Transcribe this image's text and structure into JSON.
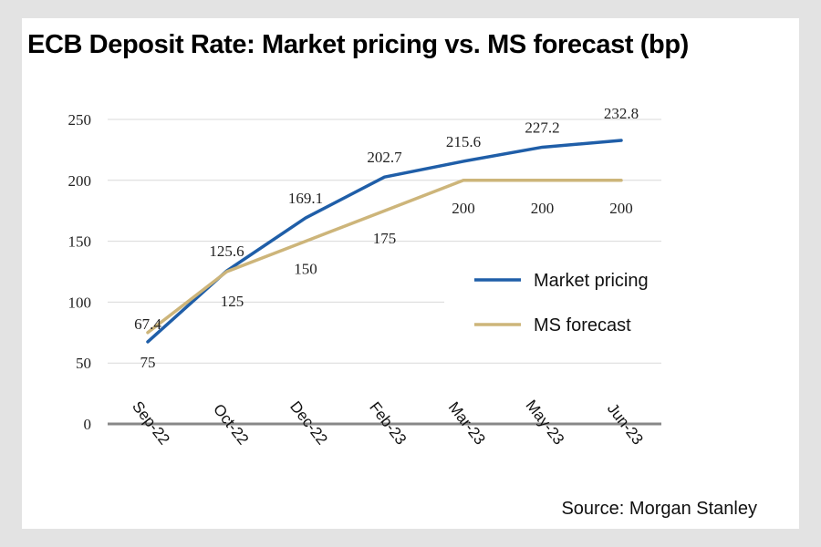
{
  "title": "ECB Deposit Rate: Market pricing vs. MS forecast (bp)",
  "source": "Source: Morgan Stanley",
  "colors": {
    "market": "#1f5ea8",
    "ms": "#cdb57a",
    "grid": "#d9d9d9",
    "axis": "#888888"
  },
  "chart_data": {
    "type": "line",
    "title": "ECB Deposit Rate: Market pricing vs. MS forecast (bp)",
    "categories": [
      "Sep-22",
      "Oct-22",
      "Dec-22",
      "Feb-23",
      "Mar-23",
      "May-23",
      "Jun-23"
    ],
    "ylim": [
      0,
      250
    ],
    "yticks": [
      0,
      50,
      100,
      150,
      200,
      250
    ],
    "grid": true,
    "legend": "right",
    "series": [
      {
        "name": "Market pricing",
        "color": "#1f5ea8",
        "values": [
          67.4,
          125.6,
          169.1,
          202.7,
          215.6,
          227.2,
          232.8
        ],
        "labels": [
          "67.4",
          "125.6",
          "169.1",
          "202.7",
          "215.6",
          "227.2",
          "232.8"
        ]
      },
      {
        "name": "MS forecast",
        "color": "#cdb57a",
        "values": [
          75,
          125,
          150,
          175,
          200,
          200,
          200
        ],
        "labels": [
          "75",
          "125",
          "150",
          "175",
          "200",
          "200",
          "200"
        ]
      }
    ]
  }
}
